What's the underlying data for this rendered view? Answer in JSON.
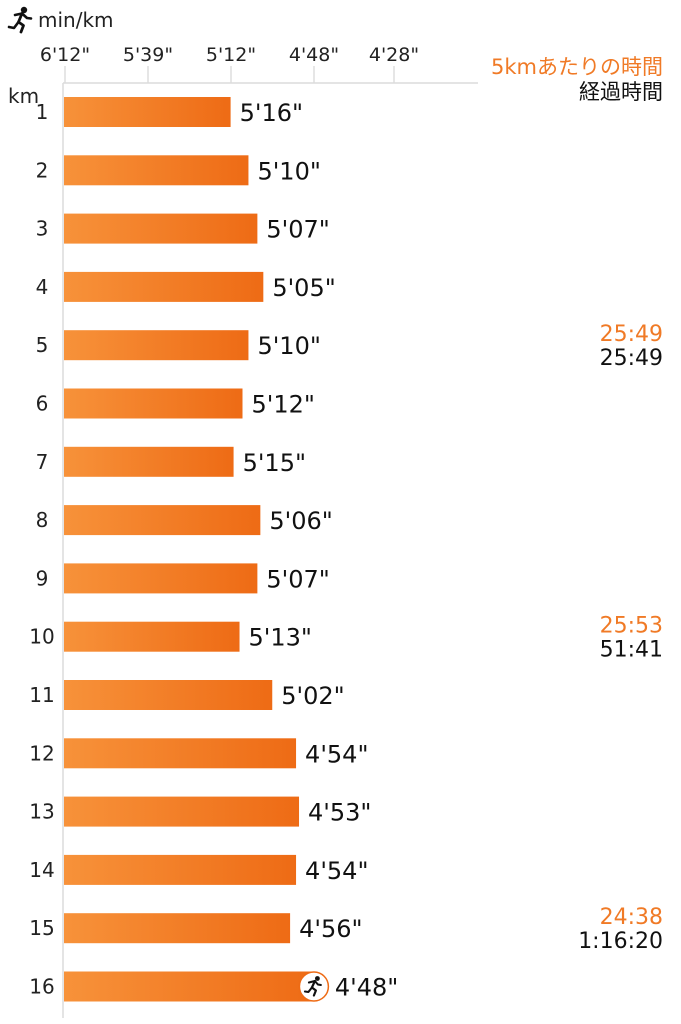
{
  "chart_data": {
    "type": "bar",
    "orientation": "horizontal",
    "x_unit": "min/km",
    "y_unit": "km",
    "x_ticks": [
      "6'12\"",
      "5'39\"",
      "5'12\"",
      "4'48\"",
      "4'28\""
    ],
    "categories": [
      "1",
      "2",
      "3",
      "4",
      "5",
      "6",
      "7",
      "8",
      "9",
      "10",
      "11",
      "12",
      "13",
      "14",
      "15",
      "16"
    ],
    "values": [
      "5'16\"",
      "5'10\"",
      "5'07\"",
      "5'05\"",
      "5'10\"",
      "5'12\"",
      "5'15\"",
      "5'06\"",
      "5'07\"",
      "5'13\"",
      "5'02\"",
      "4'54\"",
      "4'53\"",
      "4'54\"",
      "4'56\"",
      "4'48\""
    ],
    "pace_seconds": [
      316,
      310,
      307,
      305,
      310,
      312,
      315,
      306,
      307,
      313,
      302,
      294,
      293,
      294,
      296,
      288
    ],
    "legend": {
      "split": "5kmあたりの時間",
      "elapsed": "経過時間"
    },
    "annotations": [
      {
        "km": "5",
        "split": "25:49",
        "elapsed": "25:49"
      },
      {
        "km": "10",
        "split": "25:53",
        "elapsed": "51:41"
      },
      {
        "km": "15",
        "split": "24:38",
        "elapsed": "1:16:20"
      }
    ],
    "colors": {
      "bar_start": "#f7923a",
      "bar_end": "#ee6b15",
      "accent": "#f07a26",
      "grid": "#dddddd"
    },
    "icons": [
      "runner-icon",
      "runner-badge-icon"
    ],
    "grid": true
  }
}
